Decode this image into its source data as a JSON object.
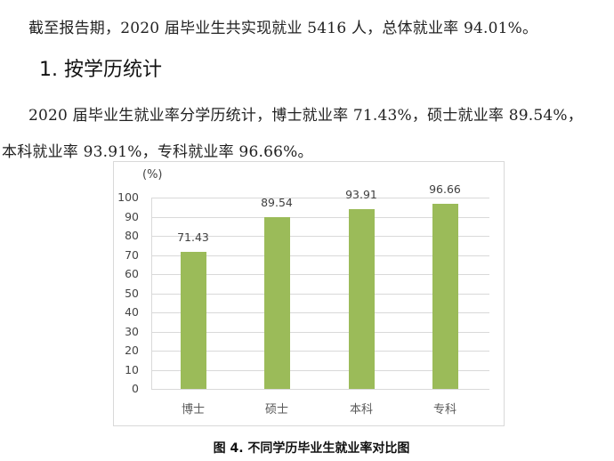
{
  "document": {
    "paragraph_1": "截至报告期，2020 届毕业生共实现就业 5416 人，总体就业率 94.01%。",
    "heading": "1. 按学历统计",
    "paragraph_2_line_1": "2020 届毕业生就业率分学历统计，博士就业率 71.43%，硕士就业率 89.54%，",
    "paragraph_2_line_2": "本科就业率 93.91%，专科就业率 96.66%。",
    "caption": "图 4. 不同学历毕业生就业率对比图"
  },
  "chart_data": {
    "type": "bar",
    "title": "",
    "caption": "图 4. 不同学历毕业生就业率对比图",
    "categories": [
      "博士",
      "硕士",
      "本科",
      "专科"
    ],
    "values": [
      71.43,
      89.54,
      93.91,
      96.66
    ],
    "value_labels": [
      "71.43",
      "89.54",
      "93.91",
      "96.66"
    ],
    "xlabel": "",
    "ylabel": "(%)",
    "ylim": [
      0,
      100
    ],
    "yticks": [
      "0",
      "10",
      "20",
      "30",
      "40",
      "50",
      "60",
      "70",
      "80",
      "90",
      "100"
    ],
    "grid": true,
    "legend": "none",
    "bar_color": "#9bbb59"
  }
}
